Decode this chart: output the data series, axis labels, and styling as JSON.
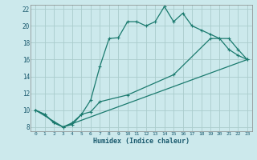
{
  "xlabel": "Humidex (Indice chaleur)",
  "xlim": [
    -0.5,
    23.5
  ],
  "ylim": [
    7.5,
    22.5
  ],
  "xticks": [
    0,
    1,
    2,
    3,
    4,
    5,
    6,
    7,
    8,
    9,
    10,
    11,
    12,
    13,
    14,
    15,
    16,
    17,
    18,
    19,
    20,
    21,
    22,
    23
  ],
  "yticks": [
    8,
    10,
    12,
    14,
    16,
    18,
    20,
    22
  ],
  "background_color": "#cce9ec",
  "grid_color": "#b0d8dc",
  "line_color": "#1a7a6e",
  "line1_x": [
    0,
    1,
    2,
    3,
    4,
    5,
    6,
    7,
    8,
    9,
    10,
    11,
    12,
    13,
    14,
    15,
    16,
    17,
    18,
    19,
    20,
    21,
    22,
    23
  ],
  "line1_y": [
    10.0,
    9.5,
    8.5,
    8.0,
    8.3,
    9.5,
    11.2,
    15.2,
    18.5,
    18.6,
    20.5,
    20.5,
    20.0,
    20.5,
    22.3,
    20.5,
    21.5,
    20.0,
    19.5,
    19.0,
    18.5,
    17.2,
    16.5,
    16.0
  ],
  "line2_x": [
    0,
    1,
    2,
    3,
    4,
    5,
    6,
    7,
    10,
    15,
    19,
    20,
    21,
    22,
    23
  ],
  "line2_y": [
    10.0,
    9.5,
    8.5,
    8.0,
    8.5,
    9.5,
    9.8,
    11.0,
    11.8,
    14.2,
    18.5,
    18.5,
    18.5,
    17.2,
    16.0
  ],
  "line3_x": [
    0,
    3,
    23
  ],
  "line3_y": [
    10.0,
    8.0,
    16.0
  ]
}
